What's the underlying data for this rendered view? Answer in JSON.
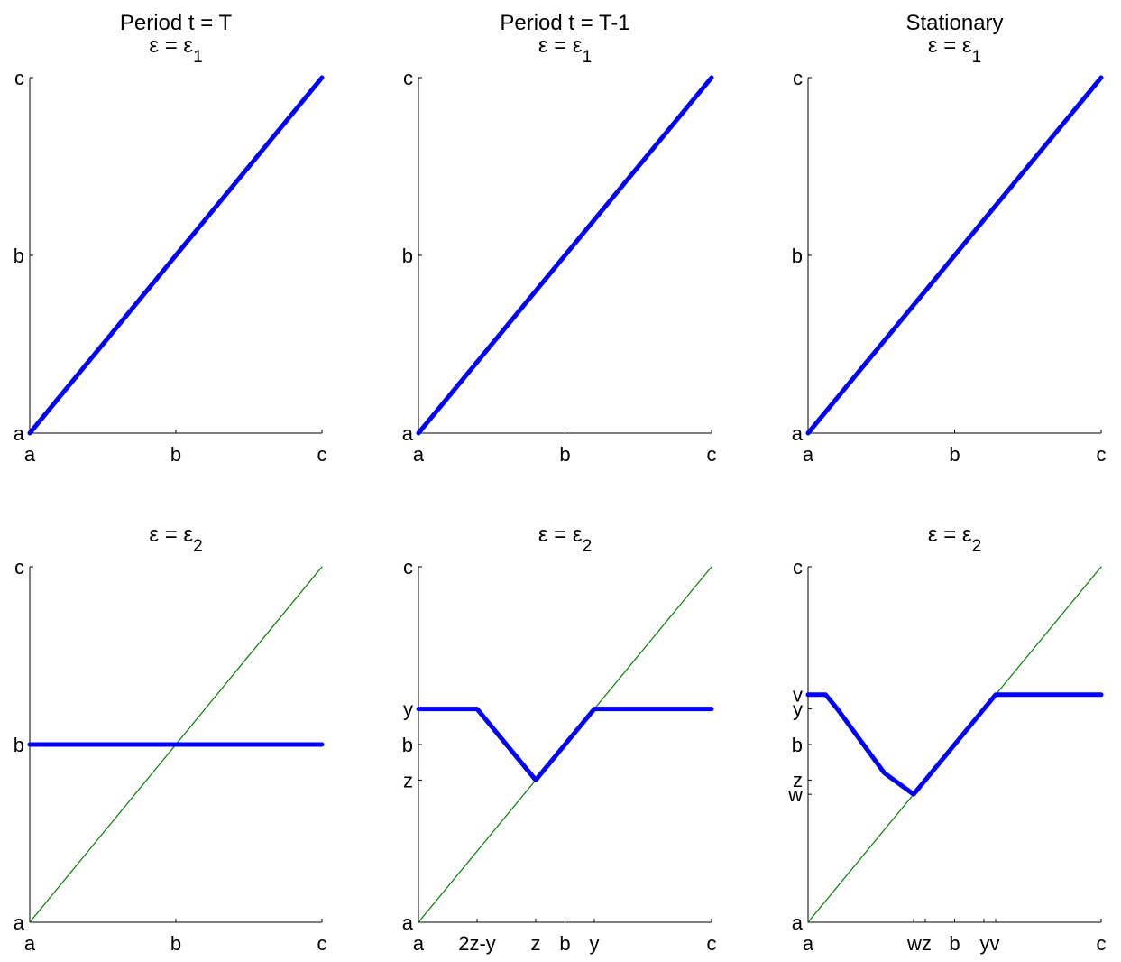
{
  "column_titles": [
    "Period t = T",
    "Period t = T-1",
    "Stationary"
  ],
  "chart_data": [
    {
      "type": "line",
      "title": "Period t = T",
      "subtitle": "ε = ε1",
      "xticks": [
        {
          "value": 0,
          "label": "a"
        },
        {
          "value": 0.5,
          "label": "b"
        },
        {
          "value": 1,
          "label": "c"
        }
      ],
      "yticks": [
        {
          "value": 0,
          "label": "a"
        },
        {
          "value": 0.5,
          "label": "b"
        },
        {
          "value": 1,
          "label": "c"
        }
      ],
      "xlim": [
        0,
        1
      ],
      "ylim": [
        0,
        1
      ],
      "series": [
        {
          "color": "#0000ff",
          "style": "thick",
          "x": [
            0,
            1
          ],
          "y": [
            0,
            1
          ]
        }
      ]
    },
    {
      "type": "line",
      "title": "Period t = T-1",
      "subtitle": "ε = ε1",
      "xticks": [
        {
          "value": 0,
          "label": "a"
        },
        {
          "value": 0.5,
          "label": "b"
        },
        {
          "value": 1,
          "label": "c"
        }
      ],
      "yticks": [
        {
          "value": 0,
          "label": "a"
        },
        {
          "value": 0.5,
          "label": "b"
        },
        {
          "value": 1,
          "label": "c"
        }
      ],
      "xlim": [
        0,
        1
      ],
      "ylim": [
        0,
        1
      ],
      "series": [
        {
          "color": "#0000ff",
          "style": "thick",
          "x": [
            0,
            1
          ],
          "y": [
            0,
            1
          ]
        }
      ]
    },
    {
      "type": "line",
      "title": "Stationary",
      "subtitle": "ε = ε1",
      "xticks": [
        {
          "value": 0,
          "label": "a"
        },
        {
          "value": 0.5,
          "label": "b"
        },
        {
          "value": 1,
          "label": "c"
        }
      ],
      "yticks": [
        {
          "value": 0,
          "label": "a"
        },
        {
          "value": 0.5,
          "label": "b"
        },
        {
          "value": 1,
          "label": "c"
        }
      ],
      "xlim": [
        0,
        1
      ],
      "ylim": [
        0,
        1
      ],
      "series": [
        {
          "color": "#0000ff",
          "style": "thick",
          "x": [
            0,
            1
          ],
          "y": [
            0,
            1
          ]
        }
      ]
    },
    {
      "type": "line",
      "title": "",
      "subtitle": "ε = ε2",
      "xticks": [
        {
          "value": 0,
          "label": "a"
        },
        {
          "value": 0.5,
          "label": "b"
        },
        {
          "value": 1,
          "label": "c"
        }
      ],
      "yticks": [
        {
          "value": 0,
          "label": "a"
        },
        {
          "value": 0.5,
          "label": "b"
        },
        {
          "value": 1,
          "label": "c"
        }
      ],
      "xlim": [
        0,
        1
      ],
      "ylim": [
        0,
        1
      ],
      "series": [
        {
          "color": "#008000",
          "style": "thin",
          "x": [
            0,
            1
          ],
          "y": [
            0,
            1
          ]
        },
        {
          "color": "#0000ff",
          "style": "thick",
          "x": [
            0,
            1
          ],
          "y": [
            0.5,
            0.5
          ]
        }
      ]
    },
    {
      "type": "line",
      "title": "",
      "subtitle": "ε = ε2",
      "xticks": [
        {
          "value": 0,
          "label": "a"
        },
        {
          "value": 0.2,
          "label": "2z-y"
        },
        {
          "value": 0.4,
          "label": "z"
        },
        {
          "value": 0.5,
          "label": "b"
        },
        {
          "value": 0.6,
          "label": "y"
        },
        {
          "value": 1,
          "label": "c"
        }
      ],
      "yticks": [
        {
          "value": 0,
          "label": "a"
        },
        {
          "value": 0.4,
          "label": "z"
        },
        {
          "value": 0.5,
          "label": "b"
        },
        {
          "value": 0.6,
          "label": "y"
        },
        {
          "value": 1,
          "label": "c"
        }
      ],
      "xlim": [
        0,
        1
      ],
      "ylim": [
        0,
        1
      ],
      "series": [
        {
          "color": "#008000",
          "style": "thin",
          "x": [
            0,
            1
          ],
          "y": [
            0,
            1
          ]
        },
        {
          "color": "#0000ff",
          "style": "thick",
          "x": [
            0,
            0.2,
            0.4,
            0.6,
            1
          ],
          "y": [
            0.6,
            0.6,
            0.4,
            0.6,
            0.6
          ]
        }
      ]
    },
    {
      "type": "line",
      "title": "",
      "subtitle": "ε = ε2",
      "xticks": [
        {
          "value": 0,
          "label": "a"
        },
        {
          "value": 0.36,
          "label": "w"
        },
        {
          "value": 0.4,
          "label": "z"
        },
        {
          "value": 0.5,
          "label": "b"
        },
        {
          "value": 0.6,
          "label": "y"
        },
        {
          "value": 0.64,
          "label": "v"
        },
        {
          "value": 1,
          "label": "c"
        }
      ],
      "yticks": [
        {
          "value": 0,
          "label": "a"
        },
        {
          "value": 0.36,
          "label": "w"
        },
        {
          "value": 0.4,
          "label": "z"
        },
        {
          "value": 0.5,
          "label": "b"
        },
        {
          "value": 0.6,
          "label": "y"
        },
        {
          "value": 0.64,
          "label": "v"
        },
        {
          "value": 1,
          "label": "c"
        }
      ],
      "xlim": [
        0,
        1
      ],
      "ylim": [
        0,
        1
      ],
      "series": [
        {
          "color": "#008000",
          "style": "thin",
          "x": [
            0,
            1
          ],
          "y": [
            0,
            1
          ]
        },
        {
          "color": "#0000ff",
          "style": "thick",
          "x": [
            0,
            0.06,
            0.1,
            0.26,
            0.36,
            0.64,
            1
          ],
          "y": [
            0.64,
            0.64,
            0.6,
            0.42,
            0.36,
            0.64,
            0.64
          ]
        }
      ]
    }
  ]
}
